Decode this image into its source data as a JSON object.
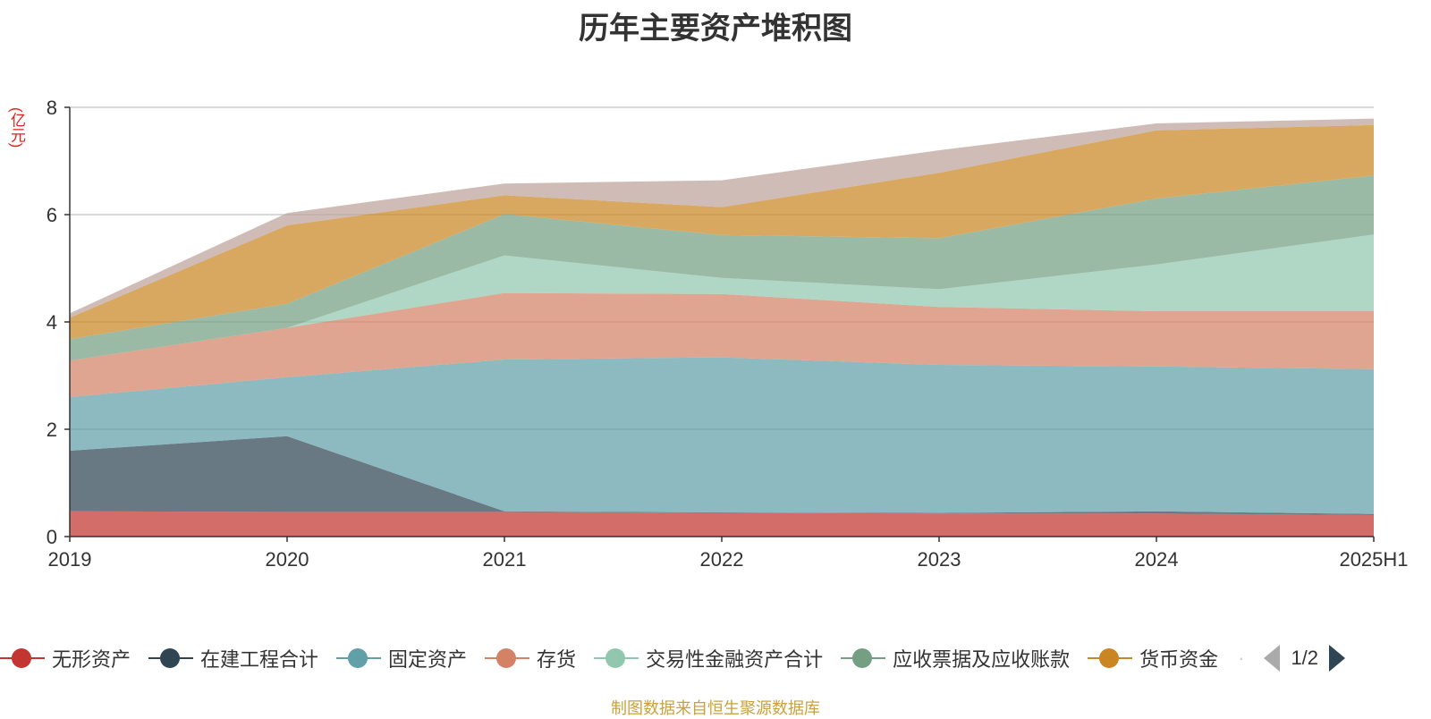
{
  "title": "历年主要资产堆积图",
  "unit_label": "(亿元)",
  "source": "制图数据来自恒生聚源数据库",
  "legend_page": "1/2",
  "legend_more": "·",
  "chart_data": {
    "type": "area",
    "stacked": true,
    "title": "历年主要资产堆积图",
    "ylabel": "(亿元)",
    "ylim": [
      0,
      8
    ],
    "yticks": [
      0,
      2,
      4,
      6,
      8
    ],
    "grid": true,
    "legend_position": "bottom",
    "categories": [
      "2019",
      "2020",
      "2021",
      "2022",
      "2023",
      "2024",
      "2025H1"
    ],
    "series": [
      {
        "name": "无形资产",
        "color": "#c23531",
        "values": [
          0.47,
          0.46,
          0.46,
          0.44,
          0.43,
          0.43,
          0.4
        ]
      },
      {
        "name": "在建工程合计",
        "color": "#2f4554",
        "values": [
          1.13,
          1.41,
          0.01,
          0.01,
          0.01,
          0.04,
          0.02
        ]
      },
      {
        "name": "固定资产",
        "color": "#61a0a8",
        "values": [
          1.0,
          1.1,
          2.83,
          2.89,
          2.76,
          2.7,
          2.7
        ]
      },
      {
        "name": "存货",
        "color": "#d48265",
        "values": [
          0.68,
          0.92,
          1.24,
          1.18,
          1.08,
          1.03,
          1.08
        ]
      },
      {
        "name": "交易性金融资产合计",
        "color": "#91c7ae",
        "values": [
          0.0,
          0.0,
          0.7,
          0.3,
          0.33,
          0.87,
          1.43
        ]
      },
      {
        "name": "应收票据及应收账款",
        "color": "#749f83",
        "values": [
          0.4,
          0.45,
          0.77,
          0.8,
          0.95,
          1.23,
          1.1
        ]
      },
      {
        "name": "货币资金",
        "color": "#ca8622",
        "values": [
          0.4,
          1.46,
          0.35,
          0.52,
          1.22,
          1.27,
          0.94
        ]
      },
      {
        "name": "",
        "color": "#bda29a",
        "values": [
          0.08,
          0.23,
          0.22,
          0.5,
          0.42,
          0.13,
          0.12
        ]
      }
    ]
  }
}
